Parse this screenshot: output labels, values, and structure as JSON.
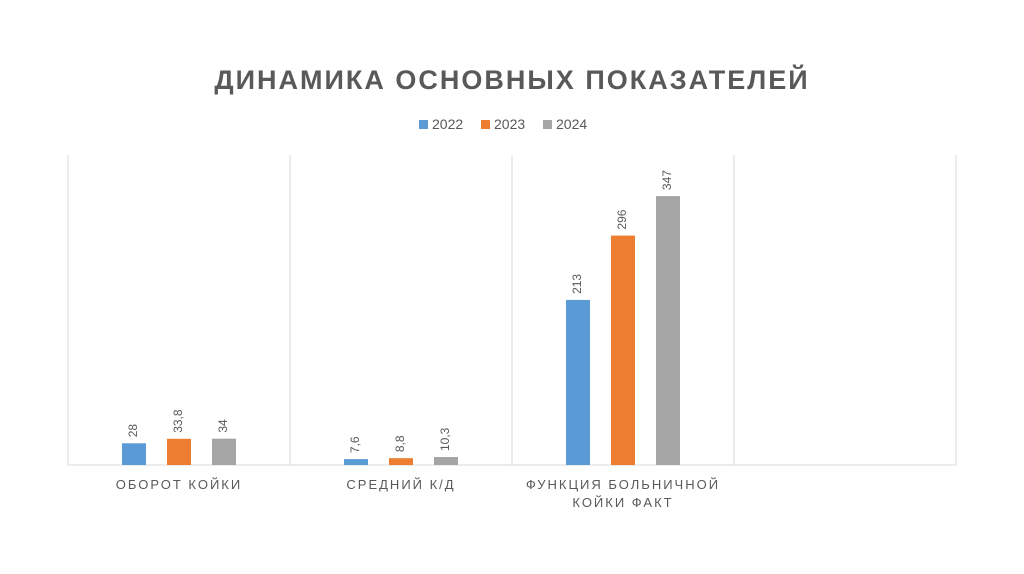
{
  "chart_data": {
    "type": "bar",
    "title": "ДИНАМИКА ОСНОВНЫХ ПОКАЗАТЕЛЕЙ",
    "categories": [
      "ОБОРОТ КОЙКИ",
      "СРЕДНИЙ К/Д",
      "ФУНКЦИЯ БОЛЬНИЧНОЙ КОЙКИ ФАКТ",
      null
    ],
    "series": [
      {
        "name": "2022",
        "color": "#5b9bd5",
        "values": [
          28,
          7.6,
          213,
          null
        ],
        "value_labels": [
          "28",
          "7,6",
          "213",
          null
        ]
      },
      {
        "name": "2023",
        "color": "#ed7d31",
        "values": [
          33.8,
          8.8,
          296,
          null
        ],
        "value_labels": [
          "33,8",
          "8,8",
          "296",
          null
        ]
      },
      {
        "name": "2024",
        "color": "#a5a5a5",
        "values": [
          34,
          10.3,
          347,
          null
        ],
        "value_labels": [
          "34",
          "10,3",
          "347",
          null
        ]
      }
    ],
    "ylim": [
      0,
      400
    ],
    "legend": "top"
  }
}
